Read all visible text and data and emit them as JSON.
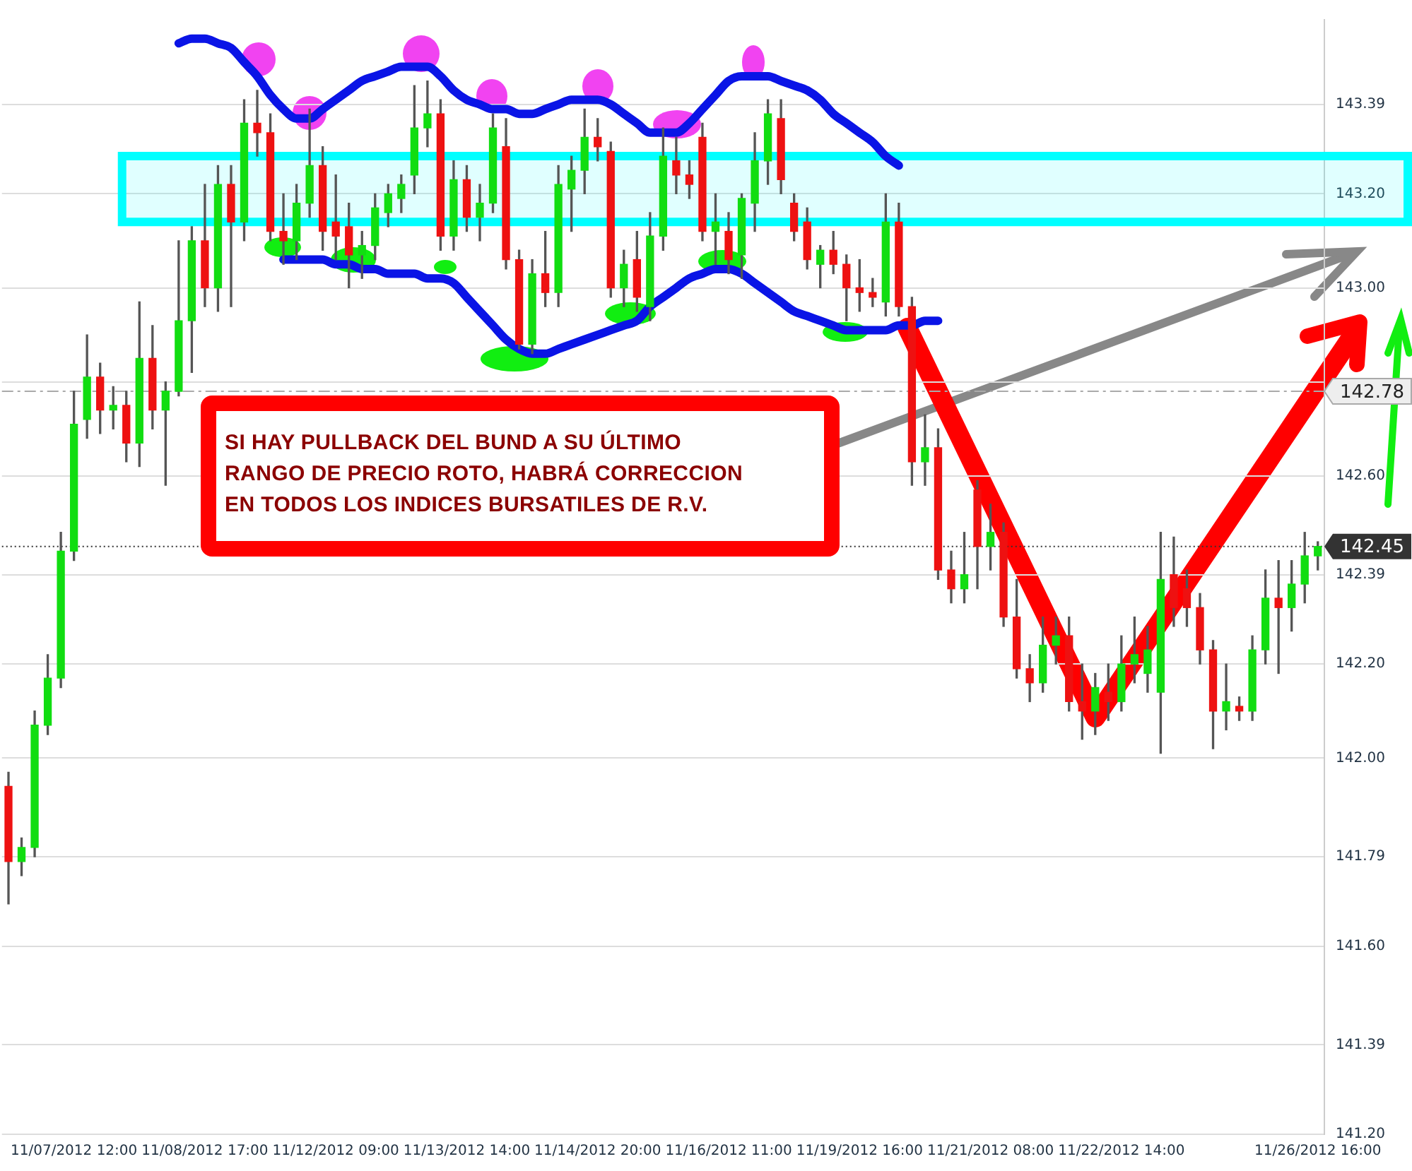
{
  "chart_data": {
    "type": "candlestick",
    "categories": [
      null,
      null,
      null,
      null,
      null,
      "11/07/2012 12:00",
      null,
      null,
      null,
      null,
      null,
      null,
      null,
      null,
      null,
      "11/08/2012 17:00",
      null,
      null,
      null,
      null,
      null,
      null,
      null,
      null,
      null,
      "11/12/2012 09:00",
      null,
      null,
      null,
      null,
      null,
      null,
      null,
      null,
      null,
      "11/13/2012 14:00",
      null,
      null,
      null,
      null,
      null,
      null,
      null,
      null,
      null,
      "11/14/2012 20:00",
      null,
      null,
      null,
      null,
      null,
      null,
      null,
      null,
      null,
      "11/16/2012 11:00",
      null,
      null,
      null,
      null,
      null,
      null,
      null,
      null,
      null,
      "11/19/2012 16:00",
      null,
      null,
      null,
      null,
      null,
      null,
      null,
      null,
      null,
      "11/21/2012 08:00",
      null,
      null,
      null,
      null,
      null,
      null,
      null,
      null,
      null,
      "11/22/2012 14:00",
      null,
      null,
      null,
      null,
      null,
      null,
      null,
      null,
      null,
      null,
      null,
      null,
      null,
      null,
      "11/26/2012 16:00"
    ],
    "ohlc": [
      [
        141.94,
        141.97,
        141.69,
        141.78
      ],
      [
        141.78,
        141.83,
        141.75,
        141.81
      ],
      [
        141.81,
        142.1,
        141.79,
        142.07
      ],
      [
        142.07,
        142.22,
        142.05,
        142.17
      ],
      [
        142.17,
        142.48,
        142.15,
        142.44
      ],
      [
        142.44,
        142.78,
        142.42,
        142.71
      ],
      [
        142.72,
        142.9,
        142.68,
        142.81
      ],
      [
        142.81,
        142.84,
        142.69,
        142.74
      ],
      [
        142.74,
        142.79,
        142.7,
        142.75
      ],
      [
        142.75,
        142.78,
        142.63,
        142.67
      ],
      [
        142.67,
        142.97,
        142.62,
        142.85
      ],
      [
        142.85,
        142.92,
        142.7,
        142.74
      ],
      [
        142.74,
        142.8,
        142.58,
        142.78
      ],
      [
        142.78,
        143.1,
        142.77,
        142.93
      ],
      [
        142.93,
        143.13,
        142.82,
        143.1
      ],
      [
        143.1,
        143.22,
        142.96,
        143.0
      ],
      [
        143.0,
        143.26,
        142.95,
        143.22
      ],
      [
        143.22,
        143.26,
        142.96,
        143.14
      ],
      [
        143.14,
        143.4,
        143.1,
        143.35
      ],
      [
        143.35,
        143.42,
        143.28,
        143.33
      ],
      [
        143.33,
        143.37,
        143.1,
        143.12
      ],
      [
        143.12,
        143.2,
        143.05,
        143.1
      ],
      [
        143.1,
        143.22,
        143.06,
        143.18
      ],
      [
        143.18,
        143.38,
        143.15,
        143.26
      ],
      [
        143.26,
        143.3,
        143.08,
        143.12
      ],
      [
        143.14,
        143.24,
        143.06,
        143.11
      ],
      [
        143.13,
        143.18,
        143.0,
        143.07
      ],
      [
        143.07,
        143.12,
        143.02,
        143.09
      ],
      [
        143.09,
        143.2,
        143.06,
        143.17
      ],
      [
        143.16,
        143.22,
        143.13,
        143.2
      ],
      [
        143.19,
        143.24,
        143.16,
        143.22
      ],
      [
        143.24,
        143.43,
        143.2,
        143.34
      ],
      [
        143.34,
        143.44,
        143.3,
        143.37
      ],
      [
        143.37,
        143.4,
        143.08,
        143.11
      ],
      [
        143.11,
        143.27,
        143.08,
        143.23
      ],
      [
        143.23,
        143.26,
        143.12,
        143.15
      ],
      [
        143.15,
        143.22,
        143.1,
        143.18
      ],
      [
        143.18,
        143.37,
        143.16,
        143.34
      ],
      [
        143.3,
        143.36,
        143.04,
        143.06
      ],
      [
        143.06,
        143.08,
        142.87,
        142.88
      ],
      [
        142.88,
        143.06,
        142.86,
        143.03
      ],
      [
        143.03,
        143.12,
        142.96,
        142.99
      ],
      [
        142.99,
        143.26,
        142.96,
        143.22
      ],
      [
        143.21,
        143.28,
        143.12,
        143.25
      ],
      [
        143.25,
        143.38,
        143.2,
        143.32
      ],
      [
        143.32,
        143.36,
        143.27,
        143.3
      ],
      [
        143.29,
        143.31,
        142.98,
        143.0
      ],
      [
        143.0,
        143.08,
        142.96,
        143.05
      ],
      [
        143.06,
        143.12,
        142.95,
        142.98
      ],
      [
        142.96,
        143.16,
        142.93,
        143.11
      ],
      [
        143.11,
        143.34,
        143.08,
        143.28
      ],
      [
        143.27,
        143.32,
        143.2,
        143.24
      ],
      [
        143.24,
        143.27,
        143.19,
        143.22
      ],
      [
        143.32,
        143.35,
        143.1,
        143.12
      ],
      [
        143.12,
        143.2,
        143.05,
        143.14
      ],
      [
        143.12,
        143.16,
        143.03,
        143.06
      ],
      [
        143.07,
        143.2,
        143.02,
        143.19
      ],
      [
        143.18,
        143.33,
        143.12,
        143.27
      ],
      [
        143.27,
        143.4,
        143.22,
        143.37
      ],
      [
        143.36,
        143.4,
        143.2,
        143.23
      ],
      [
        143.18,
        143.2,
        143.1,
        143.12
      ],
      [
        143.14,
        143.17,
        143.04,
        143.06
      ],
      [
        143.05,
        143.09,
        143.0,
        143.08
      ],
      [
        143.08,
        143.12,
        143.03,
        143.05
      ],
      [
        143.05,
        143.07,
        142.93,
        143.0
      ],
      [
        143.0,
        143.06,
        142.95,
        142.99
      ],
      [
        142.99,
        143.02,
        142.96,
        142.98
      ],
      [
        142.97,
        143.2,
        142.94,
        143.14
      ],
      [
        143.14,
        143.18,
        142.94,
        142.96
      ],
      [
        142.96,
        142.98,
        142.58,
        142.63
      ],
      [
        142.63,
        142.73,
        142.58,
        142.66
      ],
      [
        142.66,
        142.7,
        142.38,
        142.4
      ],
      [
        142.4,
        142.44,
        142.33,
        142.36
      ],
      [
        142.36,
        142.48,
        142.33,
        142.39
      ],
      [
        142.57,
        142.59,
        142.36,
        142.45
      ],
      [
        142.45,
        142.54,
        142.4,
        142.48
      ],
      [
        142.48,
        142.5,
        142.28,
        142.3
      ],
      [
        142.3,
        142.38,
        142.17,
        142.19
      ],
      [
        142.19,
        142.22,
        142.12,
        142.16
      ],
      [
        142.16,
        142.3,
        142.14,
        142.24
      ],
      [
        142.24,
        142.3,
        142.2,
        142.26
      ],
      [
        142.26,
        142.3,
        142.1,
        142.12
      ],
      [
        142.12,
        142.2,
        142.04,
        142.1
      ],
      [
        142.1,
        142.18,
        142.05,
        142.15
      ],
      [
        142.14,
        142.2,
        142.08,
        142.12
      ],
      [
        142.12,
        142.26,
        142.1,
        142.2
      ],
      [
        142.2,
        142.3,
        142.16,
        142.22
      ],
      [
        142.18,
        142.28,
        142.14,
        142.23
      ],
      [
        142.14,
        142.48,
        142.01,
        142.38
      ],
      [
        142.39,
        142.47,
        142.28,
        142.32
      ],
      [
        142.36,
        142.4,
        142.28,
        142.32
      ],
      [
        142.32,
        142.35,
        142.2,
        142.23
      ],
      [
        142.23,
        142.25,
        142.02,
        142.1
      ],
      [
        142.1,
        142.2,
        142.06,
        142.12
      ],
      [
        142.11,
        142.13,
        142.08,
        142.1
      ],
      [
        142.1,
        142.26,
        142.08,
        142.23
      ],
      [
        142.23,
        142.4,
        142.2,
        142.34
      ],
      [
        142.34,
        142.42,
        142.18,
        142.32
      ],
      [
        142.32,
        142.42,
        142.27,
        142.37
      ],
      [
        142.37,
        142.48,
        142.33,
        142.43
      ],
      [
        142.43,
        142.46,
        142.4,
        142.45
      ]
    ],
    "colors": [
      "#ee1111",
      "#11dd11",
      "#11dd11",
      "#11dd11",
      "#11dd11",
      "#11dd11",
      "#11dd11",
      "#ee1111",
      "#11dd11",
      "#ee1111",
      "#11dd11",
      "#ee1111",
      "#11dd11",
      "#11dd11",
      "#11dd11",
      "#ee1111",
      "#11dd11",
      "#ee1111",
      "#11dd11",
      "#ee1111",
      "#ee1111",
      "#ee1111",
      "#11dd11",
      "#11dd11",
      "#ee1111",
      "#ee1111",
      "#ee1111",
      "#11dd11",
      "#11dd11",
      "#11dd11",
      "#11dd11",
      "#11dd11",
      "#11dd11",
      "#ee1111",
      "#11dd11",
      "#ee1111",
      "#11dd11",
      "#11dd11",
      "#ee1111",
      "#ee1111",
      "#11dd11",
      "#ee1111",
      "#11dd11",
      "#11dd11",
      "#11dd11",
      "#ee1111",
      "#ee1111",
      "#11dd11",
      "#ee1111",
      "#11dd11",
      "#11dd11",
      "#ee1111",
      "#ee1111",
      "#ee1111",
      "#11dd11",
      "#ee1111",
      "#11dd11",
      "#11dd11",
      "#11dd11",
      "#ee1111",
      "#ee1111",
      "#ee1111",
      "#11dd11",
      "#ee1111",
      "#ee1111",
      "#ee1111",
      "#ee1111",
      "#11dd11",
      "#ee1111",
      "#ee1111",
      "#11dd11",
      "#ee1111",
      "#ee1111",
      "#11dd11",
      "#ee1111",
      "#11dd11",
      "#ee1111",
      "#ee1111",
      "#ee1111",
      "#11dd11",
      "#11dd11",
      "#ee1111",
      "#ee1111",
      "#11dd11",
      "#ee1111",
      "#11dd11",
      "#11dd11",
      "#11dd11",
      "#11dd11",
      "#ee1111",
      "#ee1111",
      "#ee1111",
      "#ee1111",
      "#11dd11",
      "#ee1111",
      "#11dd11",
      "#11dd11",
      "#ee1111",
      "#11dd11",
      "#11dd11",
      "#11dd11"
    ],
    "ylim": [
      141.2,
      143.57
    ],
    "yticks": [
      {
        "value": 141.2,
        "label": "141.20"
      },
      {
        "value": 141.39,
        "label": "141.39"
      },
      {
        "value": 141.6,
        "label": "141.60"
      },
      {
        "value": 141.79,
        "label": "141.79"
      },
      {
        "value": 142,
        "label": "142.00"
      },
      {
        "value": 142.2,
        "label": "142.20"
      },
      {
        "value": 142.39,
        "label": "142.39"
      },
      {
        "value": 142.6,
        "label": "142.60"
      },
      {
        "value": 142.8,
        "label": null
      },
      {
        "value": 143,
        "label": "143.00"
      },
      {
        "value": 143.2,
        "label": "143.20"
      },
      {
        "value": 143.39,
        "label": "143.39"
      }
    ],
    "series": [
      {
        "type": "line",
        "color": "#0a14e6",
        "values": [
          null,
          null,
          null,
          null,
          null,
          null,
          null,
          null,
          null,
          null,
          null,
          null,
          null,
          143.52,
          143.53,
          143.53,
          143.52,
          143.51,
          143.48,
          143.45,
          143.41,
          143.38,
          143.36,
          143.36,
          143.38,
          143.4,
          143.42,
          143.44,
          143.45,
          143.46,
          143.47,
          143.47,
          143.47,
          143.45,
          143.42,
          143.4,
          143.39,
          143.38,
          143.38,
          143.37,
          143.37,
          143.38,
          143.39,
          143.4,
          143.4,
          143.4,
          143.39,
          143.37,
          143.35,
          143.33,
          143.33,
          143.33,
          143.35,
          143.38,
          143.41,
          143.44,
          143.45,
          143.45,
          143.45,
          143.44,
          143.43,
          143.42,
          143.4,
          143.37,
          143.35,
          143.33,
          143.31,
          143.28,
          143.26,
          null,
          null,
          null,
          null,
          null,
          null,
          null,
          null,
          null,
          null,
          null,
          null,
          null,
          null,
          null,
          null,
          null,
          null,
          null,
          null,
          null,
          null,
          null,
          null,
          null,
          null,
          null,
          null,
          null,
          null,
          null,
          null
        ]
      },
      {
        "type": "line",
        "color": "#0a14e6",
        "values": [
          null,
          null,
          null,
          null,
          null,
          null,
          null,
          null,
          null,
          null,
          null,
          null,
          null,
          null,
          null,
          null,
          null,
          null,
          null,
          null,
          null,
          143.06,
          143.06,
          143.06,
          143.06,
          143.05,
          143.05,
          143.04,
          143.04,
          143.03,
          143.03,
          143.03,
          143.02,
          143.02,
          143.01,
          142.98,
          142.95,
          142.92,
          142.89,
          142.87,
          142.86,
          142.86,
          142.87,
          142.88,
          142.89,
          142.9,
          142.91,
          142.92,
          142.93,
          142.96,
          142.98,
          143.0,
          143.02,
          143.03,
          143.04,
          143.04,
          143.03,
          143.01,
          142.99,
          142.97,
          142.95,
          142.94,
          142.93,
          142.92,
          142.91,
          142.91,
          142.91,
          142.91,
          142.92,
          142.92,
          142.93,
          142.93,
          null,
          null,
          null,
          null,
          null,
          null,
          null,
          null,
          null,
          null,
          null,
          null,
          null,
          null,
          null,
          null,
          null,
          null,
          null,
          null,
          null,
          null,
          null,
          null,
          null,
          null,
          null,
          null,
          null
        ]
      }
    ],
    "grid": "y",
    "ref_lines": [
      {
        "axis": "y",
        "value": 142.45,
        "label": "142.45",
        "color": "#333333",
        "line_style": "dotted"
      },
      {
        "axis": "y",
        "value": 142.78,
        "label": "142.78",
        "color": "#aaaaaa",
        "line_style": "dashed"
      }
    ],
    "bands": [
      {
        "axis": "y",
        "from": 143.14,
        "to": 143.28,
        "color": "#00ffff"
      }
    ],
    "annotations": [
      "SI HAY PULLBACK DEL BUND A SU ÚLTIMO\nRANGO DE PRECIO ROTO, HABRÁ CORRECCION\nEN TODOS LOS INDICES BURSATILES DE R.V."
    ]
  }
}
